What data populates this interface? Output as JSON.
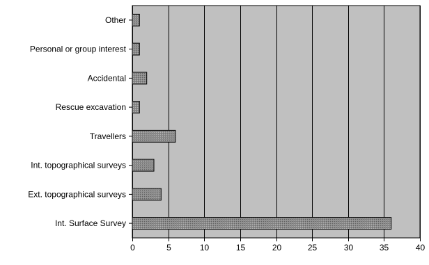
{
  "chart_data": {
    "type": "bar",
    "orientation": "horizontal",
    "categories": [
      "Other",
      "Personal or group interest",
      "Accidental",
      "Rescue excavation",
      "Travellers",
      "Int. topographical surveys",
      "Ext. topographical surveys",
      "Int. Surface Survey"
    ],
    "values": [
      1,
      1,
      2,
      1,
      6,
      3,
      4,
      36
    ],
    "title": "",
    "xlabel": "",
    "ylabel": "",
    "xlim": [
      0,
      40
    ],
    "x_ticks": [
      0,
      5,
      10,
      15,
      20,
      25,
      30,
      35,
      40
    ],
    "grid": "vertical",
    "legend": "none",
    "colors": {
      "plot_background": "#c0c0c0",
      "bar_fill": "#8c8c8c",
      "bar_stroke": "#000000",
      "grid": "#000000"
    }
  }
}
